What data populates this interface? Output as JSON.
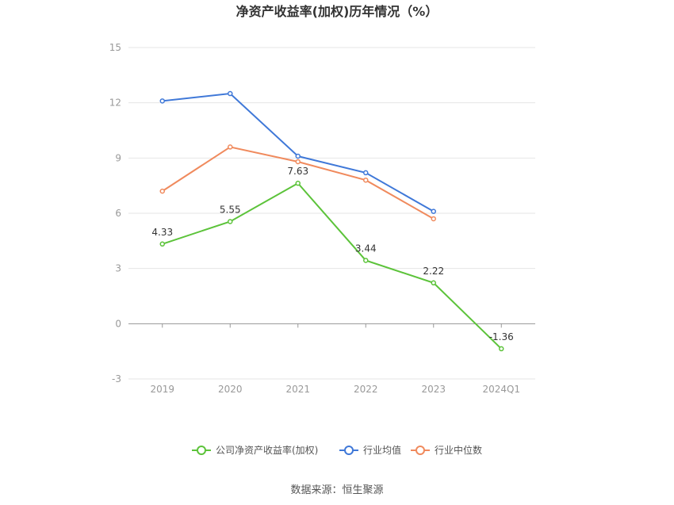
{
  "chart_data": {
    "type": "line",
    "title": "净资产收益率(加权)历年情况（%）",
    "categories": [
      "2019",
      "2020",
      "2021",
      "2022",
      "2023",
      "2024Q1"
    ],
    "ylim": [
      -3,
      15
    ],
    "yticks": [
      -3,
      0,
      3,
      6,
      9,
      12,
      15
    ],
    "grid": true,
    "legend_position": "bottom-center",
    "series": [
      {
        "name": "公司净资产收益率(加权)",
        "color": "#5cc33a",
        "values": [
          4.33,
          5.55,
          7.63,
          3.44,
          2.22,
          -1.36
        ],
        "labels": [
          "4.33",
          "5.55",
          "7.63",
          "3.44",
          "2.22",
          "-1.36"
        ]
      },
      {
        "name": "行业均值",
        "color": "#3f78d8",
        "values": [
          12.1,
          12.5,
          9.1,
          8.2,
          6.1,
          null
        ]
      },
      {
        "name": "行业中位数",
        "color": "#f08a5d",
        "values": [
          7.2,
          9.6,
          8.8,
          7.8,
          5.7,
          null
        ]
      }
    ],
    "source": "数据来源：恒生聚源"
  }
}
